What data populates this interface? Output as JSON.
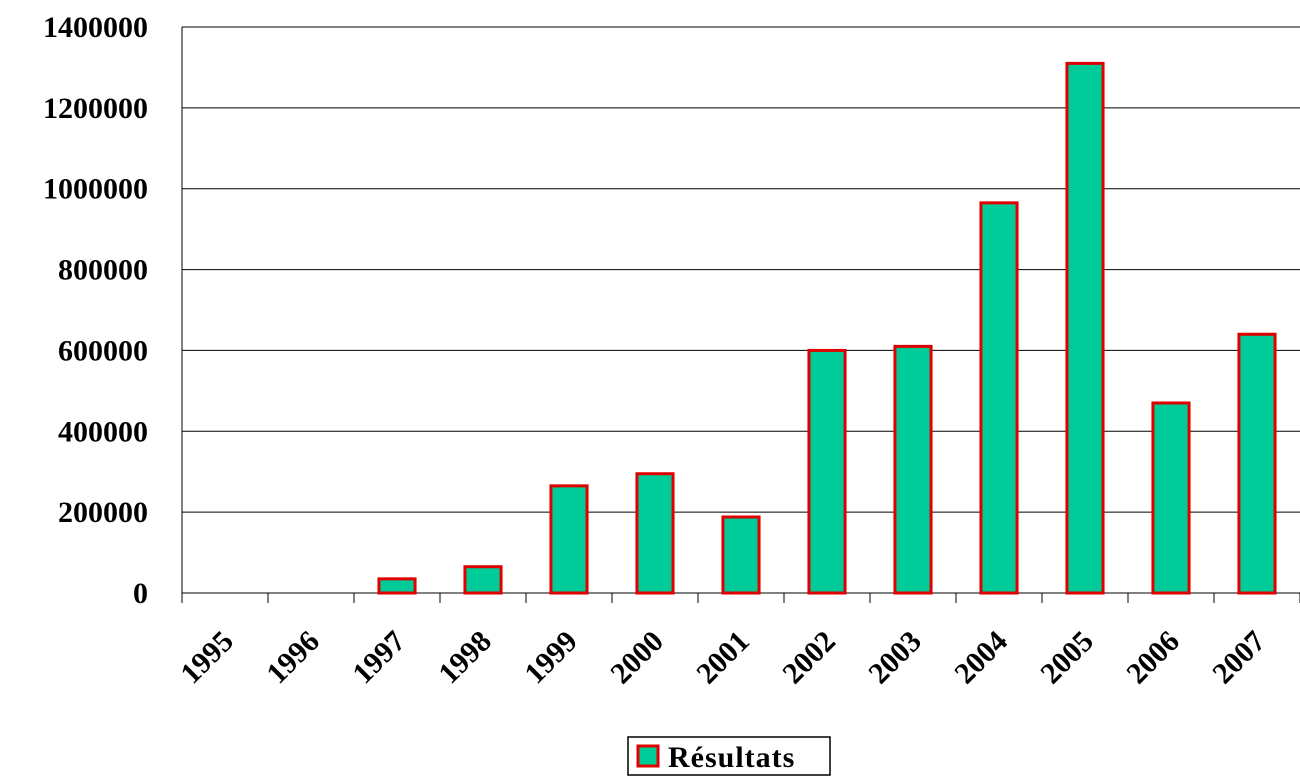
{
  "chart_data": {
    "type": "bar",
    "categories": [
      "1995",
      "1996",
      "1997",
      "1998",
      "1999",
      "2000",
      "2001",
      "2002",
      "2003",
      "2004",
      "2005",
      "2006",
      "2007"
    ],
    "series": [
      {
        "name": "Résultats",
        "color": "#00cc99",
        "edge_color": "#e00000",
        "values": [
          0,
          0,
          35000,
          65000,
          265000,
          295000,
          188000,
          600000,
          610000,
          965000,
          1310000,
          470000,
          640000
        ]
      }
    ],
    "ylim": [
      0,
      1400000
    ],
    "yticks": [
      0,
      200000,
      400000,
      600000,
      800000,
      1000000,
      1200000,
      1400000
    ],
    "grid": true,
    "legend": "bottom"
  }
}
